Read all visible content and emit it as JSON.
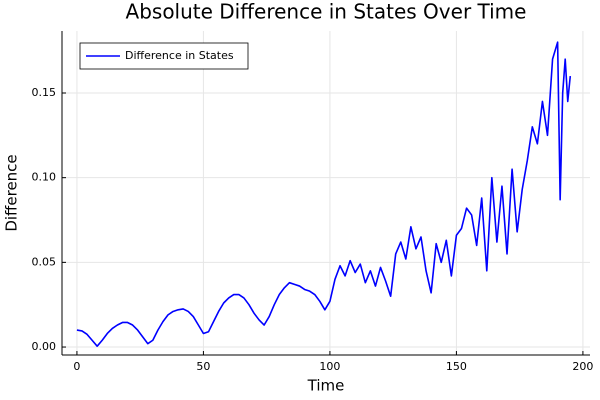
{
  "chart_data": {
    "type": "line",
    "title": "Absolute Difference in States Over Time",
    "x_label": "Time",
    "y_label": "Difference",
    "x": [
      0,
      2,
      4,
      6,
      8,
      10,
      12,
      14,
      16,
      18,
      20,
      22,
      24,
      26,
      28,
      30,
      32,
      34,
      36,
      38,
      40,
      42,
      44,
      46,
      48,
      50,
      52,
      54,
      56,
      58,
      60,
      62,
      64,
      66,
      68,
      70,
      72,
      74,
      76,
      78,
      80,
      82,
      84,
      86,
      88,
      90,
      92,
      94,
      96,
      98,
      100,
      102,
      104,
      106,
      108,
      110,
      112,
      114,
      116,
      118,
      120,
      122,
      124,
      126,
      128,
      130,
      132,
      134,
      136,
      138,
      140,
      142,
      144,
      146,
      148,
      150,
      152,
      154,
      156,
      158,
      160,
      162,
      164,
      166,
      168,
      170,
      172,
      174,
      176,
      178,
      180,
      182,
      184,
      186,
      188,
      190,
      191,
      192,
      193,
      194,
      195
    ],
    "series": [
      {
        "name": "Difference in States",
        "color": "#0000ff",
        "values": [
          0.01,
          0.0095,
          0.0075,
          0.004,
          0.0005,
          0.004,
          0.008,
          0.011,
          0.013,
          0.0145,
          0.0145,
          0.013,
          0.01,
          0.006,
          0.002,
          0.004,
          0.01,
          0.015,
          0.019,
          0.021,
          0.022,
          0.0225,
          0.021,
          0.018,
          0.013,
          0.008,
          0.009,
          0.015,
          0.021,
          0.026,
          0.029,
          0.031,
          0.031,
          0.029,
          0.025,
          0.02,
          0.016,
          0.013,
          0.018,
          0.025,
          0.031,
          0.035,
          0.038,
          0.037,
          0.036,
          0.034,
          0.033,
          0.031,
          0.027,
          0.022,
          0.027,
          0.04,
          0.048,
          0.042,
          0.051,
          0.044,
          0.049,
          0.038,
          0.045,
          0.036,
          0.047,
          0.039,
          0.03,
          0.055,
          0.062,
          0.052,
          0.071,
          0.058,
          0.065,
          0.045,
          0.032,
          0.061,
          0.05,
          0.063,
          0.042,
          0.066,
          0.07,
          0.082,
          0.078,
          0.06,
          0.088,
          0.045,
          0.1,
          0.062,
          0.095,
          0.055,
          0.105,
          0.068,
          0.093,
          0.11,
          0.13,
          0.12,
          0.145,
          0.125,
          0.17,
          0.18,
          0.087,
          0.15,
          0.17,
          0.145,
          0.16
        ]
      }
    ],
    "xlim": [
      -5.9,
      202.8
    ],
    "ylim": [
      -0.0047,
      0.1866
    ],
    "xticks": [
      0,
      50,
      100,
      150,
      200
    ],
    "yticks": [
      {
        "value": 0,
        "label": "0.00"
      },
      {
        "value": 0.05,
        "label": "0.05"
      },
      {
        "value": 0.1,
        "label": "0.10"
      },
      {
        "value": 0.15,
        "label": "0.15"
      }
    ],
    "grid": true,
    "legend": "top-left"
  }
}
